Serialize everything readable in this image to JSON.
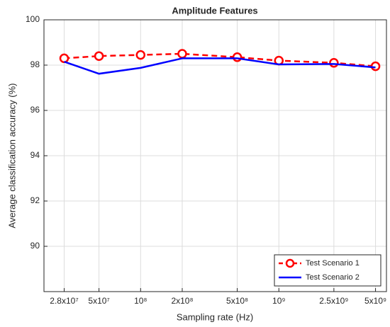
{
  "chart_data": {
    "type": "line",
    "title": "Amplitude Features",
    "xlabel": "Sampling rate (Hz)",
    "ylabel": "Average classification accuracy (%)",
    "x": [
      28000000,
      50000000,
      100000000,
      200000000,
      500000000,
      1000000000,
      2500000000,
      5000000000
    ],
    "series": [
      {
        "name": "Test Scenario 1",
        "color": "#ff0000",
        "dashed": true,
        "marker": "circle",
        "values": [
          98.3,
          98.4,
          98.45,
          98.5,
          98.35,
          98.2,
          98.1,
          97.95
        ]
      },
      {
        "name": "Test Scenario 2",
        "color": "#0000ff",
        "dashed": false,
        "marker": "none",
        "values": [
          98.15,
          97.62,
          97.88,
          98.3,
          98.3,
          98.03,
          98.05,
          97.9
        ]
      }
    ],
    "xscale": "log",
    "xlim": [
      20000000,
      6000000000
    ],
    "xticks": [
      {
        "value": 28000000,
        "label": "2.8x10⁷"
      },
      {
        "value": 50000000,
        "label": "5x10⁷"
      },
      {
        "value": 100000000,
        "label": "10⁸"
      },
      {
        "value": 200000000,
        "label": "2x10⁸"
      },
      {
        "value": 500000000,
        "label": "5x10⁸"
      },
      {
        "value": 1000000000,
        "label": "10⁹"
      },
      {
        "value": 2500000000,
        "label": "2.5x10⁹"
      },
      {
        "value": 5000000000,
        "label": "5x10⁹"
      }
    ],
    "ylim": [
      88,
      100
    ],
    "yticks": [
      90,
      92,
      94,
      96,
      98,
      100
    ],
    "grid": true,
    "legend": "lower right"
  }
}
